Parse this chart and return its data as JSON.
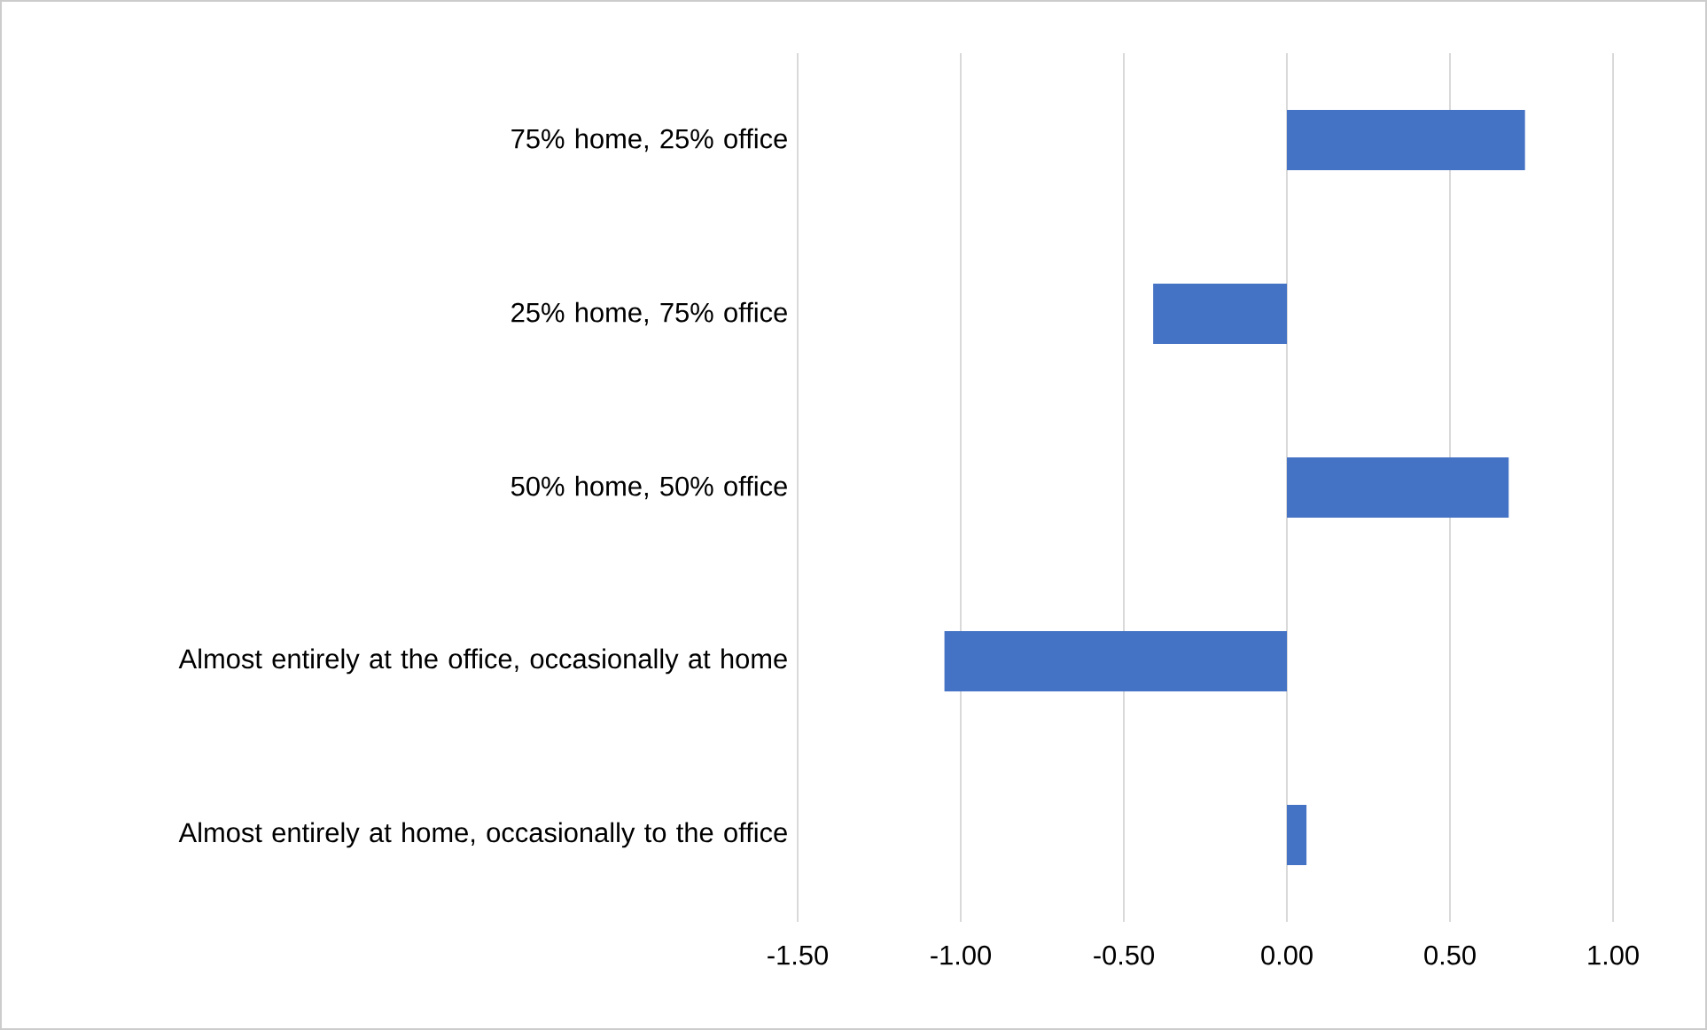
{
  "chart_data": {
    "type": "bar",
    "orientation": "horizontal",
    "categories": [
      "75% home, 25% office",
      "25% home, 75% office",
      "50% home, 50% office",
      "Almost entirely at the office, occasionally at home",
      "Almost entirely at home, occasionally to the office"
    ],
    "values": [
      0.73,
      -0.41,
      0.68,
      -1.05,
      0.06
    ],
    "color": "#4472c4",
    "xlim": [
      -1.5,
      1.0
    ],
    "xticks": [
      {
        "value": -1.5,
        "label": "-1.50"
      },
      {
        "value": -1.0,
        "label": "-1.00"
      },
      {
        "value": -0.5,
        "label": "-0.50"
      },
      {
        "value": 0.0,
        "label": "0.00"
      },
      {
        "value": 0.5,
        "label": "0.50"
      },
      {
        "value": 1.0,
        "label": "1.00"
      }
    ],
    "grid": "x"
  }
}
